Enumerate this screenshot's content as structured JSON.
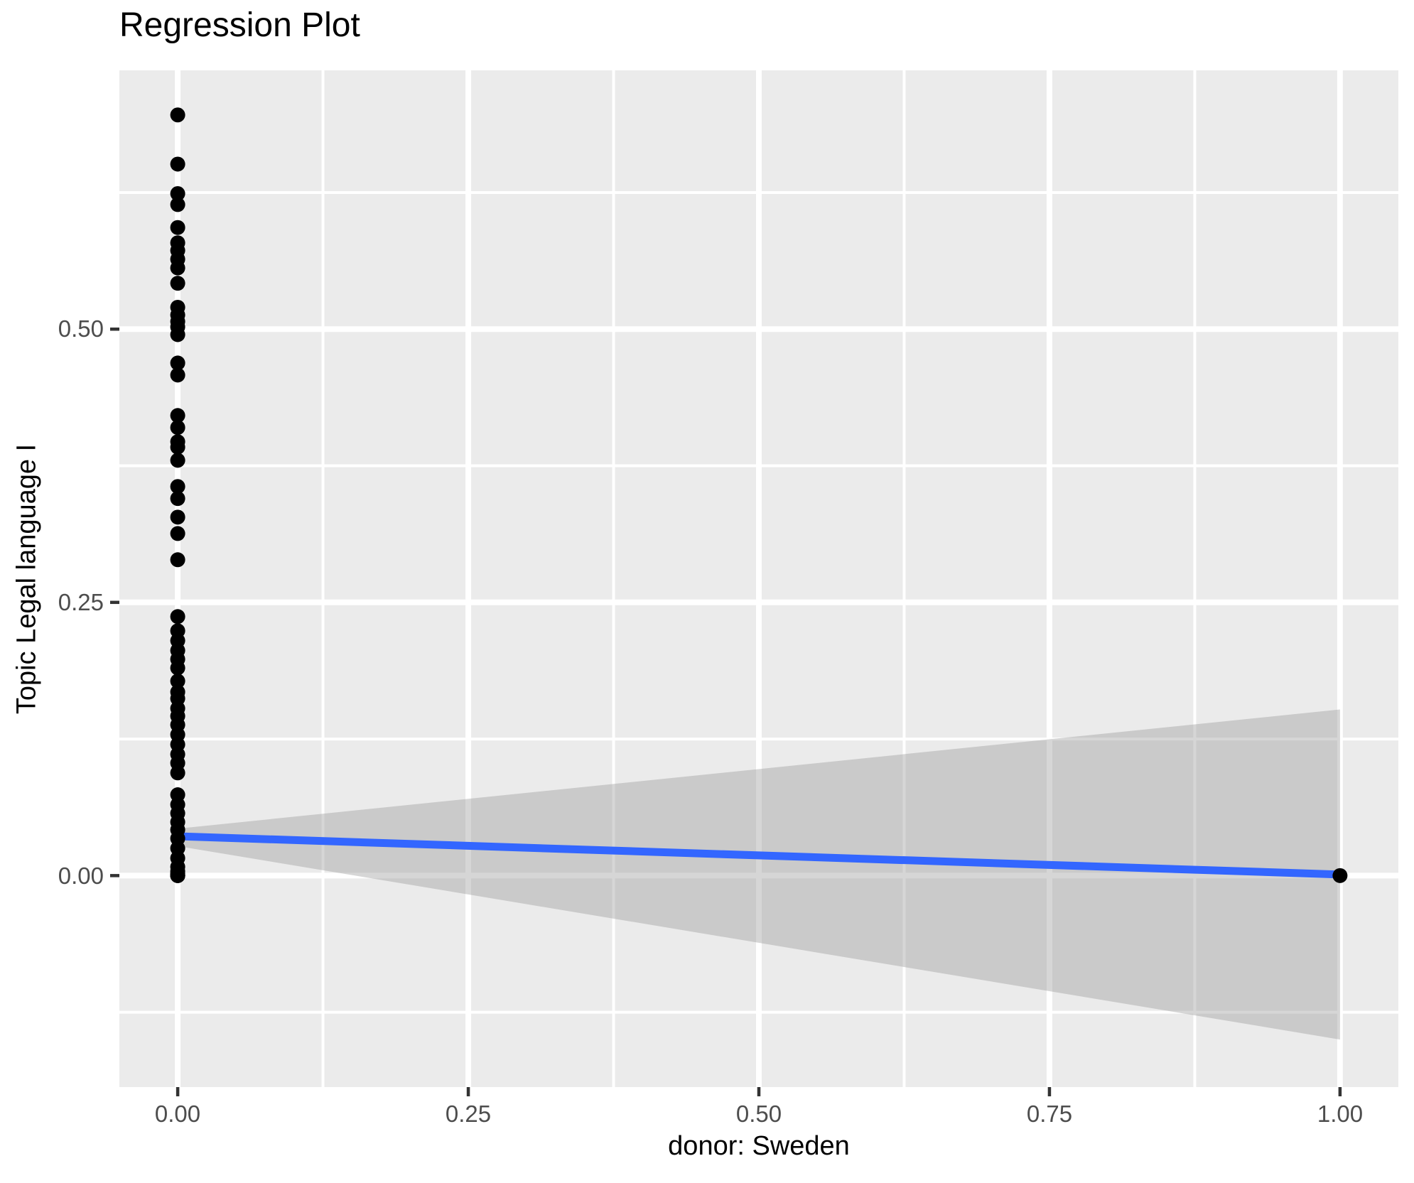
{
  "colors": {
    "background": "#FFFFFF",
    "panel": "#EBEBEB",
    "grid": "#FFFFFF",
    "band_fill": "#999999",
    "band_alpha": 0.4,
    "line": "#3366FF",
    "point": "#000000",
    "tick_mark": "#333333",
    "tick_label": "#4D4D4D"
  },
  "chart_data": {
    "type": "scatter",
    "title": "Regression Plot",
    "xlabel": "donor: Sweden",
    "ylabel": "Topic Legal language I",
    "grid": "on",
    "legend": "none",
    "x_ticks": [
      "0.00",
      "0.25",
      "0.50",
      "0.75",
      "1.00"
    ],
    "x_tick_values": [
      0,
      0.25,
      0.5,
      0.75,
      1
    ],
    "y_ticks": [
      "0.00",
      "0.25",
      "0.50"
    ],
    "y_tick_values": [
      0,
      0.25,
      0.5
    ],
    "x_minor_values": [
      0.125,
      0.375,
      0.625,
      0.875
    ],
    "y_minor_values": [
      -0.125,
      0.125,
      0.375,
      0.625
    ],
    "xlim": [
      -0.0502,
      1.0502
    ],
    "ylim": [
      -0.1935,
      0.7368
    ],
    "points": {
      "at_x0": {
        "x": 0,
        "y": [
          0.696,
          0.651,
          0.624,
          0.614,
          0.593,
          0.579,
          0.572,
          0.564,
          0.556,
          0.542,
          0.52,
          0.513,
          0.507,
          0.502,
          0.495,
          0.469,
          0.458,
          0.421,
          0.41,
          0.397,
          0.392,
          0.38,
          0.356,
          0.345,
          0.328,
          0.313,
          0.289,
          0.237,
          0.224,
          0.215,
          0.206,
          0.198,
          0.19,
          0.178,
          0.168,
          0.162,
          0.153,
          0.146,
          0.138,
          0.129,
          0.12,
          0.111,
          0.103,
          0.094,
          0.074,
          0.065,
          0.057,
          0.049,
          0.042,
          0.034,
          0.025,
          0.016,
          0.008,
          0.004,
          0.002,
          0.001,
          0.0,
          0.0,
          0.0,
          0.0
        ]
      },
      "at_x1": {
        "x": 1,
        "y": [
          0.0
        ]
      }
    },
    "regression_line": {
      "x": [
        0,
        1
      ],
      "y": [
        0.036,
        0.001
      ]
    },
    "confidence_band": {
      "x": [
        0,
        1
      ],
      "upper": [
        0.043,
        0.152
      ],
      "lower": [
        0.027,
        -0.15
      ]
    }
  }
}
